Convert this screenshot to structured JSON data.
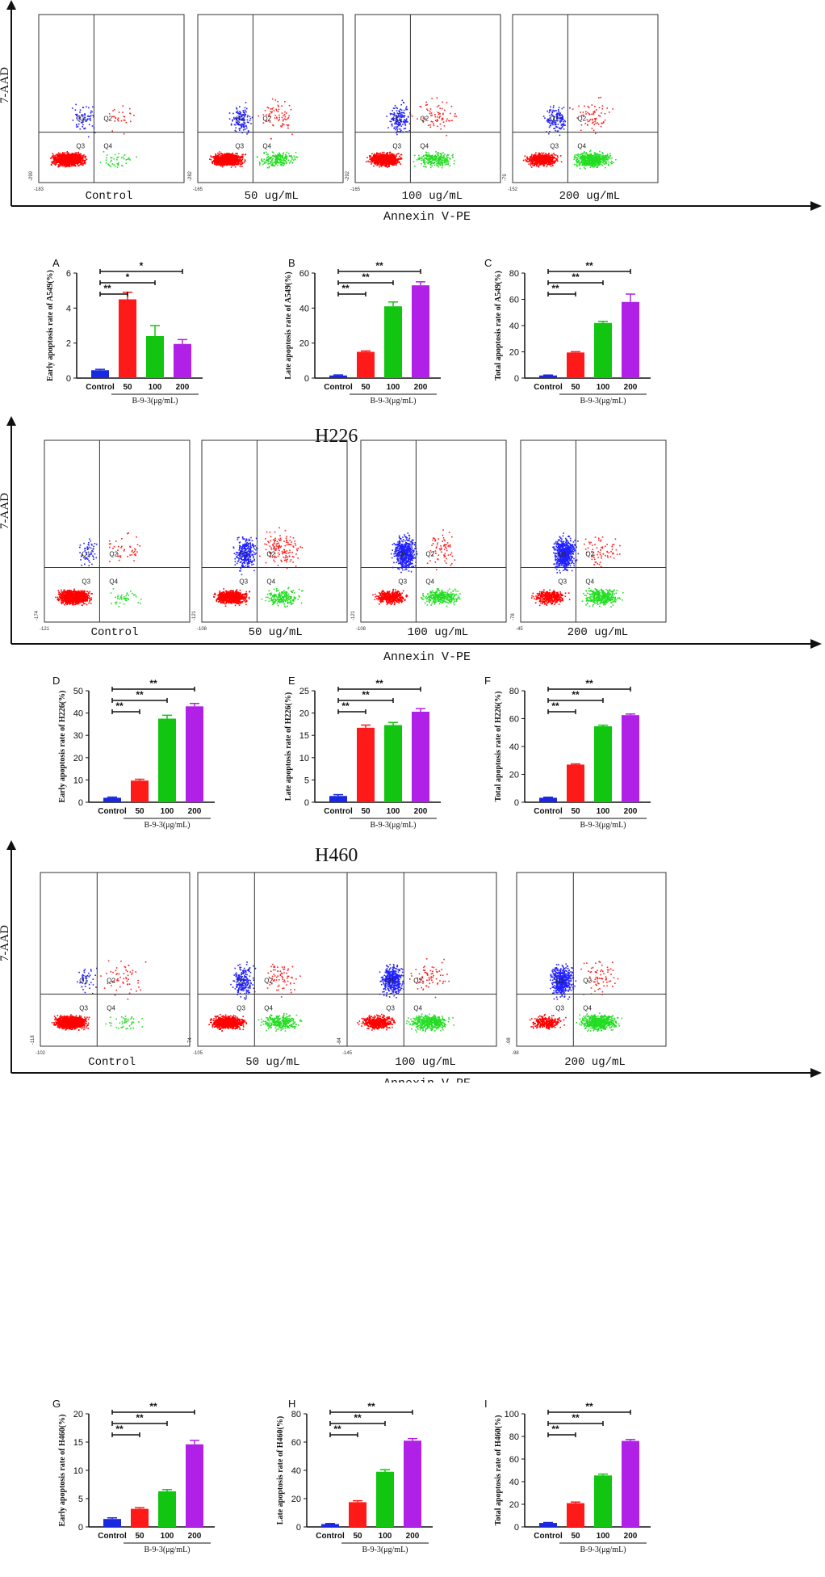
{
  "chart_data": {
    "flow_sections": [
      {
        "id": "A549",
        "title": "",
        "ylabel": "7-AAD",
        "xlabel": "Annexin V-PE",
        "quadrants": [
          "Q1",
          "Q2",
          "Q3",
          "Q4"
        ],
        "plots": [
          {
            "label": "Control",
            "ymin": "-299",
            "xmin": "-183",
            "density": [
              0.9,
              0.05,
              0.02,
              0.03
            ]
          },
          {
            "label": "50 ug/mL",
            "ymin": "-282",
            "xmin": "-165",
            "density": [
              0.7,
              0.1,
              0.05,
              0.15
            ]
          },
          {
            "label": "100 ug/mL",
            "ymin": "-292",
            "xmin": "-165",
            "density": [
              0.65,
              0.12,
              0.05,
              0.18
            ]
          },
          {
            "label": "200 ug/mL",
            "ymin": "-79",
            "xmin": "-152",
            "density": [
              0.45,
              0.1,
              0.05,
              0.4
            ]
          }
        ]
      },
      {
        "id": "H226",
        "title": "H226",
        "ylabel": "7-AAD",
        "xlabel": "Annexin V-PE",
        "quadrants": [
          "Q1",
          "Q2",
          "Q3",
          "Q4"
        ],
        "plots": [
          {
            "label": "Control",
            "ymin": "-174",
            "xmin": "-121",
            "density": [
              0.9,
              0.04,
              0.03,
              0.03
            ]
          },
          {
            "label": "50 ug/mL",
            "ymin": "-121",
            "xmin": "-108",
            "density": [
              0.55,
              0.2,
              0.1,
              0.15
            ]
          },
          {
            "label": "100 ug/mL",
            "ymin": "-121",
            "xmin": "-108",
            "density": [
              0.3,
              0.42,
              0.05,
              0.23
            ]
          },
          {
            "label": "200 ug/mL",
            "ymin": "-78",
            "xmin": "-45",
            "density": [
              0.25,
              0.45,
              0.05,
              0.25
            ]
          }
        ]
      },
      {
        "id": "H460",
        "title": "H460",
        "ylabel": "7-AAD",
        "xlabel": "Annexin V-PE",
        "quadrants": [
          "Q1",
          "Q2",
          "Q3",
          "Q4"
        ],
        "plots": [
          {
            "label": "Control",
            "ymin": "-118",
            "xmin": "-102",
            "density": [
              0.9,
              0.03,
              0.04,
              0.03
            ]
          },
          {
            "label": "50 ug/mL",
            "ymin": "-74",
            "xmin": "-105",
            "density": [
              0.6,
              0.15,
              0.05,
              0.2
            ]
          },
          {
            "label": "100 ug/mL",
            "ymin": "-84",
            "xmin": "-145",
            "density": [
              0.35,
              0.3,
              0.05,
              0.3
            ]
          },
          {
            "label": "200 ug/mL",
            "ymin": "-98",
            "xmin": "-98",
            "density": [
              0.2,
              0.35,
              0.05,
              0.4
            ]
          }
        ]
      }
    ],
    "bar_charts": [
      {
        "panel": "A",
        "type": "bar",
        "ylabel": "Early apoptosis rate of A549(%)",
        "categories": [
          "Control",
          "50",
          "100",
          "200"
        ],
        "values": [
          0.45,
          4.5,
          2.4,
          1.95
        ],
        "errors": [
          0.05,
          0.4,
          0.6,
          0.25
        ],
        "ylim": [
          0,
          6
        ],
        "yticks": [
          "0",
          "2",
          "4",
          "6"
        ],
        "group_label": "B-9-3(μg/mL)",
        "significance": [
          "**",
          "*",
          "*"
        ]
      },
      {
        "panel": "B",
        "type": "bar",
        "ylabel": "Late apoptosis rate of A549(%)",
        "categories": [
          "Control",
          "50",
          "100",
          "200"
        ],
        "values": [
          1.5,
          15,
          41,
          53
        ],
        "errors": [
          0.3,
          0.5,
          2.5,
          2
        ],
        "ylim": [
          0,
          60
        ],
        "yticks": [
          "0",
          "20",
          "40",
          "60"
        ],
        "group_label": "B-9-3(μg/mL)",
        "significance": [
          "**",
          "**",
          "**"
        ]
      },
      {
        "panel": "C",
        "type": "bar",
        "ylabel": "Total apoptosis rate of A549(%)",
        "categories": [
          "Control",
          "50",
          "100",
          "200"
        ],
        "values": [
          2,
          19.5,
          42,
          58
        ],
        "errors": [
          0.3,
          0.6,
          1.2,
          6
        ],
        "ylim": [
          0,
          80
        ],
        "yticks": [
          "0",
          "20",
          "40",
          "60",
          "80"
        ],
        "group_label": "B-9-3(μg/mL)",
        "significance": [
          "**",
          "**",
          "**"
        ]
      },
      {
        "panel": "D",
        "type": "bar",
        "ylabel": "Early apoptosis rate of H226(%)",
        "categories": [
          "Control",
          "50",
          "100",
          "200"
        ],
        "values": [
          2,
          9.7,
          37.5,
          43
        ],
        "errors": [
          0.3,
          0.6,
          1.5,
          1.3
        ],
        "ylim": [
          0,
          50
        ],
        "yticks": [
          "0",
          "10",
          "20",
          "30",
          "40",
          "50"
        ],
        "group_label": "B-9-3(μg/mL)",
        "significance": [
          "**",
          "**",
          "**"
        ]
      },
      {
        "panel": "E",
        "type": "bar",
        "ylabel": "Late apoptosis rate of H226(%)",
        "categories": [
          "Control",
          "50",
          "100",
          "200"
        ],
        "values": [
          1.4,
          16.7,
          17.3,
          20.3
        ],
        "errors": [
          0.3,
          0.6,
          0.6,
          0.7
        ],
        "ylim": [
          0,
          25
        ],
        "yticks": [
          "0",
          "5",
          "10",
          "15",
          "20",
          "25"
        ],
        "group_label": "B-9-3(μg/mL)",
        "significance": [
          "**",
          "**",
          "**"
        ]
      },
      {
        "panel": "F",
        "type": "bar",
        "ylabel": "Total apoptosis rate of H226(%)",
        "categories": [
          "Control",
          "50",
          "100",
          "200"
        ],
        "values": [
          3.2,
          27,
          54.5,
          62.5
        ],
        "errors": [
          0.4,
          0.5,
          0.8,
          0.8
        ],
        "ylim": [
          0,
          80
        ],
        "yticks": [
          "0",
          "20",
          "40",
          "60",
          "80"
        ],
        "group_label": "B-9-3(μg/mL)",
        "significance": [
          "**",
          "**",
          "**"
        ]
      },
      {
        "panel": "G",
        "type": "bar",
        "ylabel": "Early apoptosis rate of H460(%)",
        "categories": [
          "Control",
          "50",
          "100",
          "200"
        ],
        "values": [
          1.4,
          3.2,
          6.3,
          14.6
        ],
        "errors": [
          0.2,
          0.2,
          0.3,
          0.7
        ],
        "ylim": [
          0,
          20
        ],
        "yticks": [
          "0",
          "5",
          "10",
          "15",
          "20"
        ],
        "group_label": "B-9-3(μg/mL)",
        "significance": [
          "**",
          "**",
          "**"
        ]
      },
      {
        "panel": "H",
        "type": "bar",
        "ylabel": "Late apoptosis rate of H460(%)",
        "categories": [
          "Control",
          "50",
          "100",
          "200"
        ],
        "values": [
          2,
          17.5,
          39,
          61
        ],
        "errors": [
          0.4,
          1,
          1.5,
          1.5
        ],
        "ylim": [
          0,
          80
        ],
        "yticks": [
          "0",
          "20",
          "40",
          "60",
          "80"
        ],
        "group_label": "B-9-3(μg/mL)",
        "significance": [
          "**",
          "**",
          "**"
        ]
      },
      {
        "panel": "I",
        "type": "bar",
        "ylabel": "Total apoptosis rate of H460(%)",
        "categories": [
          "Control",
          "50",
          "100",
          "200"
        ],
        "values": [
          3.5,
          21,
          45.5,
          76
        ],
        "errors": [
          0.4,
          1,
          1.2,
          1.3
        ],
        "ylim": [
          0,
          100
        ],
        "yticks": [
          "0",
          "20",
          "40",
          "60",
          "80",
          "100"
        ],
        "group_label": "B-9-3(μg/mL)",
        "significance": [
          "**",
          "**",
          "**"
        ]
      }
    ],
    "colors": {
      "control": "#1a29e0",
      "c50": "#ff1a1a",
      "c100": "#11c511",
      "c200": "#b020e6",
      "q1": "#2020ff",
      "q2": "#ff2020",
      "q3": "#ff0000",
      "q4": "#22dd22"
    }
  }
}
